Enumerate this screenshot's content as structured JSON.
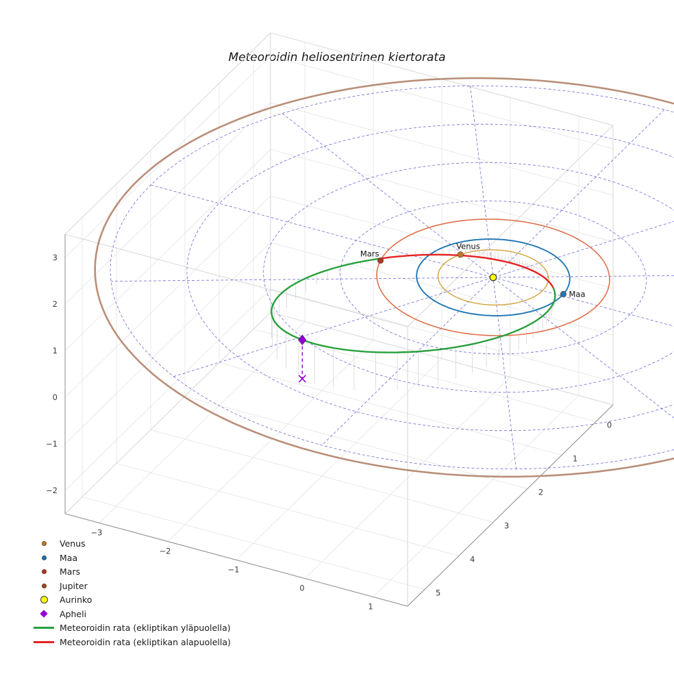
{
  "chart_data": {
    "type": "3d-orbit-plot",
    "title": "Meteoroidin heliosentrinen kiertorata",
    "axes": {
      "x": {
        "range": [
          -3.5,
          1.5
        ],
        "ticks": [
          {
            "value": -3,
            "label": "−3"
          },
          {
            "value": -2,
            "label": "−2"
          },
          {
            "value": -1,
            "label": "−1"
          },
          {
            "value": 0,
            "label": "0"
          },
          {
            "value": 1,
            "label": "1"
          }
        ]
      },
      "y": {
        "range": [
          -0.5,
          5.5
        ],
        "ticks": [
          {
            "value": 0,
            "label": "0"
          },
          {
            "value": 1,
            "label": "1"
          },
          {
            "value": 2,
            "label": "2"
          },
          {
            "value": 3,
            "label": "3"
          },
          {
            "value": 4,
            "label": "4"
          },
          {
            "value": 5,
            "label": "5"
          }
        ]
      },
      "z": {
        "range": [
          -2.5,
          3.5
        ],
        "ticks": [
          {
            "value": 3,
            "label": "3"
          },
          {
            "value": 2,
            "label": "2"
          },
          {
            "value": 1,
            "label": "1"
          },
          {
            "value": 0,
            "label": "0"
          },
          {
            "value": -1,
            "label": "−1"
          },
          {
            "value": -2,
            "label": "−2"
          }
        ]
      }
    },
    "ecliptic_grid": {
      "style": "dashed-polar",
      "circle_radii_au": [
        1,
        2,
        3,
        4,
        5
      ],
      "radial_step_deg": 30,
      "color": "#4343cb"
    },
    "sun": {
      "label": "Aurinko",
      "color": "#ffff00",
      "edge_color": "#333333"
    },
    "planets": [
      {
        "name": "Venus",
        "orbit_radius_au": 0.72,
        "orbit_color": "#d4a13c",
        "marker_color": "#c0782c",
        "longitude_deg": 207,
        "label_visible": true
      },
      {
        "name": "Maa",
        "orbit_radius_au": 1.0,
        "orbit_color": "#1f77b4",
        "marker_color": "#1f77b4",
        "longitude_deg": 357,
        "label_visible": true
      },
      {
        "name": "Mars",
        "orbit_radius_au": 1.52,
        "orbit_color": "#e06f4a",
        "marker_color": "#ab3a28",
        "longitude_deg": 168,
        "label_visible": true
      },
      {
        "name": "Jupiter",
        "orbit_radius_au": 5.2,
        "orbit_color": "#b98e78",
        "marker_color": "#9c4f24",
        "longitude_deg": -35,
        "label_visible": false
      }
    ],
    "meteoroid_orbit": {
      "semimajor_axis_au": 2.21,
      "eccentricity": 0.72,
      "inclination_deg": 14,
      "ascending_node_deg": -10,
      "arg_perihelion_deg": -65,
      "above_ecliptic_color": "#28a03c",
      "below_ecliptic_color": "#e62020",
      "above_label": "Meteoroidin rata (ekliptikan yläpuolella)",
      "below_label": "Meteoroidin rata (ekliptikan alapuolella)"
    },
    "aphelion": {
      "label": "Apheli",
      "color": "#9400d3"
    },
    "legend": [
      {
        "label": "Venus",
        "marker": "dot",
        "color": "#c0782c"
      },
      {
        "label": "Maa",
        "marker": "dot",
        "color": "#1f77b4"
      },
      {
        "label": "Mars",
        "marker": "dot",
        "color": "#ab3a28"
      },
      {
        "label": "Jupiter",
        "marker": "dot",
        "color": "#9c4f24"
      },
      {
        "label": "Aurinko",
        "marker": "dot-large",
        "color": "#ffff00",
        "edge": "#333333"
      },
      {
        "label": "Apheli",
        "marker": "diamond",
        "color": "#9400d3"
      },
      {
        "label": "Meteoroidin rata (ekliptikan yläpuolella)",
        "marker": "line",
        "color": "#28a03c"
      },
      {
        "label": "Meteoroidin rata (ekliptikan alapuolella)",
        "marker": "line",
        "color": "#e62020"
      }
    ]
  }
}
